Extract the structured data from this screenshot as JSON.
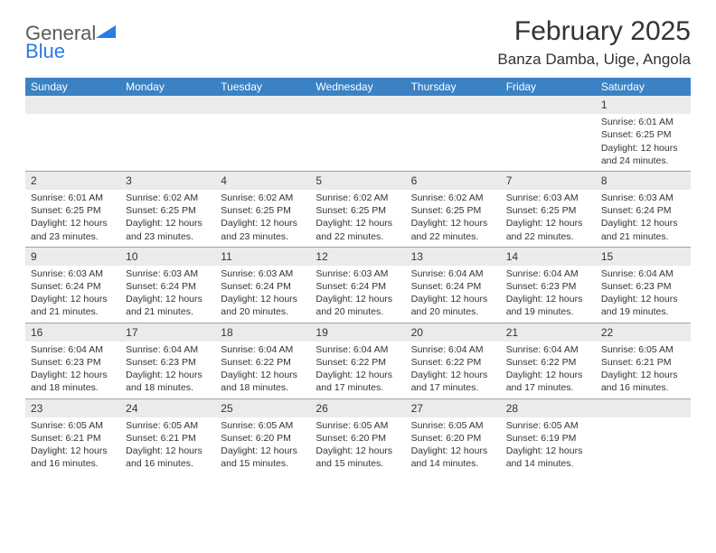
{
  "brand": {
    "name1": "General",
    "name2": "Blue"
  },
  "title": "February 2025",
  "location": "Banza Damba, Uige, Angola",
  "header_bg": "#3b82c4",
  "header_fg": "#ffffff",
  "daynum_bg": "#ebebeb",
  "border_color": "#9ca3af",
  "days_of_week": [
    "Sunday",
    "Monday",
    "Tuesday",
    "Wednesday",
    "Thursday",
    "Friday",
    "Saturday"
  ],
  "weeks": [
    [
      null,
      null,
      null,
      null,
      null,
      null,
      {
        "n": "1",
        "sunrise": "Sunrise: 6:01 AM",
        "sunset": "Sunset: 6:25 PM",
        "daylight1": "Daylight: 12 hours",
        "daylight2": "and 24 minutes."
      }
    ],
    [
      {
        "n": "2",
        "sunrise": "Sunrise: 6:01 AM",
        "sunset": "Sunset: 6:25 PM",
        "daylight1": "Daylight: 12 hours",
        "daylight2": "and 23 minutes."
      },
      {
        "n": "3",
        "sunrise": "Sunrise: 6:02 AM",
        "sunset": "Sunset: 6:25 PM",
        "daylight1": "Daylight: 12 hours",
        "daylight2": "and 23 minutes."
      },
      {
        "n": "4",
        "sunrise": "Sunrise: 6:02 AM",
        "sunset": "Sunset: 6:25 PM",
        "daylight1": "Daylight: 12 hours",
        "daylight2": "and 23 minutes."
      },
      {
        "n": "5",
        "sunrise": "Sunrise: 6:02 AM",
        "sunset": "Sunset: 6:25 PM",
        "daylight1": "Daylight: 12 hours",
        "daylight2": "and 22 minutes."
      },
      {
        "n": "6",
        "sunrise": "Sunrise: 6:02 AM",
        "sunset": "Sunset: 6:25 PM",
        "daylight1": "Daylight: 12 hours",
        "daylight2": "and 22 minutes."
      },
      {
        "n": "7",
        "sunrise": "Sunrise: 6:03 AM",
        "sunset": "Sunset: 6:25 PM",
        "daylight1": "Daylight: 12 hours",
        "daylight2": "and 22 minutes."
      },
      {
        "n": "8",
        "sunrise": "Sunrise: 6:03 AM",
        "sunset": "Sunset: 6:24 PM",
        "daylight1": "Daylight: 12 hours",
        "daylight2": "and 21 minutes."
      }
    ],
    [
      {
        "n": "9",
        "sunrise": "Sunrise: 6:03 AM",
        "sunset": "Sunset: 6:24 PM",
        "daylight1": "Daylight: 12 hours",
        "daylight2": "and 21 minutes."
      },
      {
        "n": "10",
        "sunrise": "Sunrise: 6:03 AM",
        "sunset": "Sunset: 6:24 PM",
        "daylight1": "Daylight: 12 hours",
        "daylight2": "and 21 minutes."
      },
      {
        "n": "11",
        "sunrise": "Sunrise: 6:03 AM",
        "sunset": "Sunset: 6:24 PM",
        "daylight1": "Daylight: 12 hours",
        "daylight2": "and 20 minutes."
      },
      {
        "n": "12",
        "sunrise": "Sunrise: 6:03 AM",
        "sunset": "Sunset: 6:24 PM",
        "daylight1": "Daylight: 12 hours",
        "daylight2": "and 20 minutes."
      },
      {
        "n": "13",
        "sunrise": "Sunrise: 6:04 AM",
        "sunset": "Sunset: 6:24 PM",
        "daylight1": "Daylight: 12 hours",
        "daylight2": "and 20 minutes."
      },
      {
        "n": "14",
        "sunrise": "Sunrise: 6:04 AM",
        "sunset": "Sunset: 6:23 PM",
        "daylight1": "Daylight: 12 hours",
        "daylight2": "and 19 minutes."
      },
      {
        "n": "15",
        "sunrise": "Sunrise: 6:04 AM",
        "sunset": "Sunset: 6:23 PM",
        "daylight1": "Daylight: 12 hours",
        "daylight2": "and 19 minutes."
      }
    ],
    [
      {
        "n": "16",
        "sunrise": "Sunrise: 6:04 AM",
        "sunset": "Sunset: 6:23 PM",
        "daylight1": "Daylight: 12 hours",
        "daylight2": "and 18 minutes."
      },
      {
        "n": "17",
        "sunrise": "Sunrise: 6:04 AM",
        "sunset": "Sunset: 6:23 PM",
        "daylight1": "Daylight: 12 hours",
        "daylight2": "and 18 minutes."
      },
      {
        "n": "18",
        "sunrise": "Sunrise: 6:04 AM",
        "sunset": "Sunset: 6:22 PM",
        "daylight1": "Daylight: 12 hours",
        "daylight2": "and 18 minutes."
      },
      {
        "n": "19",
        "sunrise": "Sunrise: 6:04 AM",
        "sunset": "Sunset: 6:22 PM",
        "daylight1": "Daylight: 12 hours",
        "daylight2": "and 17 minutes."
      },
      {
        "n": "20",
        "sunrise": "Sunrise: 6:04 AM",
        "sunset": "Sunset: 6:22 PM",
        "daylight1": "Daylight: 12 hours",
        "daylight2": "and 17 minutes."
      },
      {
        "n": "21",
        "sunrise": "Sunrise: 6:04 AM",
        "sunset": "Sunset: 6:22 PM",
        "daylight1": "Daylight: 12 hours",
        "daylight2": "and 17 minutes."
      },
      {
        "n": "22",
        "sunrise": "Sunrise: 6:05 AM",
        "sunset": "Sunset: 6:21 PM",
        "daylight1": "Daylight: 12 hours",
        "daylight2": "and 16 minutes."
      }
    ],
    [
      {
        "n": "23",
        "sunrise": "Sunrise: 6:05 AM",
        "sunset": "Sunset: 6:21 PM",
        "daylight1": "Daylight: 12 hours",
        "daylight2": "and 16 minutes."
      },
      {
        "n": "24",
        "sunrise": "Sunrise: 6:05 AM",
        "sunset": "Sunset: 6:21 PM",
        "daylight1": "Daylight: 12 hours",
        "daylight2": "and 16 minutes."
      },
      {
        "n": "25",
        "sunrise": "Sunrise: 6:05 AM",
        "sunset": "Sunset: 6:20 PM",
        "daylight1": "Daylight: 12 hours",
        "daylight2": "and 15 minutes."
      },
      {
        "n": "26",
        "sunrise": "Sunrise: 6:05 AM",
        "sunset": "Sunset: 6:20 PM",
        "daylight1": "Daylight: 12 hours",
        "daylight2": "and 15 minutes."
      },
      {
        "n": "27",
        "sunrise": "Sunrise: 6:05 AM",
        "sunset": "Sunset: 6:20 PM",
        "daylight1": "Daylight: 12 hours",
        "daylight2": "and 14 minutes."
      },
      {
        "n": "28",
        "sunrise": "Sunrise: 6:05 AM",
        "sunset": "Sunset: 6:19 PM",
        "daylight1": "Daylight: 12 hours",
        "daylight2": "and 14 minutes."
      },
      null
    ]
  ]
}
